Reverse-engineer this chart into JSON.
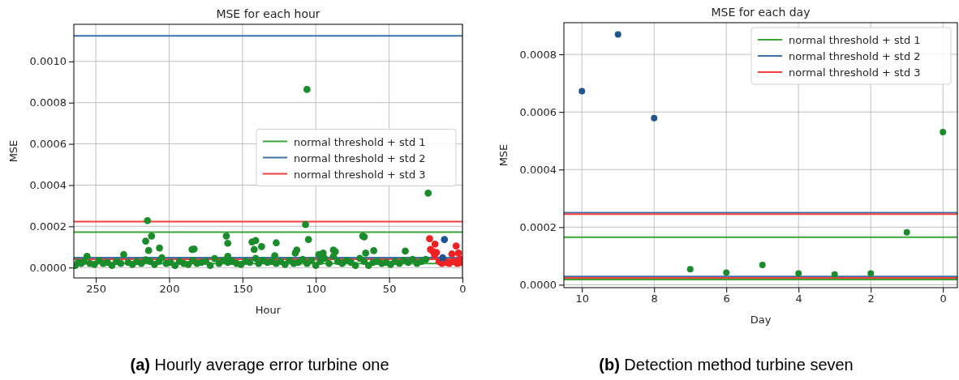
{
  "chart_data": [
    {
      "type": "scatter",
      "title": "MSE for each hour",
      "xlabel": "Hour",
      "ylabel": "MSE",
      "xlim": [
        265,
        0
      ],
      "xticks": [
        250,
        200,
        150,
        100,
        50,
        0
      ],
      "ylim": [
        -5e-05,
        0.00118
      ],
      "yticks": [
        {
          "value": 0,
          "label": "0.0000"
        },
        {
          "value": 0.0002,
          "label": "0.0002"
        },
        {
          "value": 0.0004,
          "label": "0.0004"
        },
        {
          "value": 0.0006,
          "label": "0.0006"
        },
        {
          "value": 0.0008,
          "label": "0.0008"
        },
        {
          "value": 0.001,
          "label": "0.0010"
        }
      ],
      "grid": true,
      "legend": "center right",
      "marker": "circle",
      "annotations": [
        "(a) Hourly average error turbine one"
      ],
      "series": [
        {
          "type": "line",
          "marker": "none",
          "name": "normal threshold + std 1",
          "color": "#3aa63a",
          "x": [
            265,
            0
          ],
          "values": [
            0.000172,
            0.000172
          ]
        },
        {
          "type": "line",
          "marker": "none",
          "color": "#3aa63a",
          "x": [
            265,
            0
          ],
          "values": [
            2e-05,
            2e-05
          ]
        },
        {
          "type": "line",
          "marker": "none",
          "name": "normal threshold + std 2",
          "color": "#3f70a8",
          "x": [
            265,
            0
          ],
          "values": [
            0.001124,
            0.001124
          ]
        },
        {
          "type": "line",
          "marker": "none",
          "color": "#3f70a8",
          "x": [
            265,
            0
          ],
          "values": [
            4.8e-05,
            4.8e-05
          ]
        },
        {
          "type": "line",
          "marker": "none",
          "name": "normal threshold + std 3",
          "color": "#f04040",
          "x": [
            265,
            0
          ],
          "values": [
            0.000223,
            0.000223
          ]
        },
        {
          "type": "line",
          "marker": "none",
          "color": "#f04040",
          "x": [
            265,
            0
          ],
          "values": [
            4e-05,
            4e-05
          ]
        },
        {
          "color": "#1a8c2c",
          "x": [
            264,
            262,
            260,
            258,
            256,
            254,
            251,
            248,
            245,
            242,
            239,
            236,
            233,
            231,
            228,
            225,
            222,
            219,
            216,
            213,
            210,
            207,
            205,
            202,
            199,
            196,
            193,
            190,
            187,
            184,
            181,
            178,
            175,
            172,
            169,
            166,
            163,
            160,
            157,
            154,
            151,
            148,
            145,
            141,
            139,
            136,
            133,
            130,
            127,
            124,
            121,
            118,
            115,
            112,
            109,
            106,
            103,
            100,
            97,
            94,
            91,
            88,
            85,
            82,
            79,
            76,
            73,
            70,
            67,
            64,
            61,
            58,
            55,
            52,
            49,
            46,
            43,
            40,
            37,
            34,
            31,
            28,
            25,
            106,
            23.4,
            214.8,
            107,
            216,
            212,
            214,
            206.6,
            184.4,
            183,
            161,
            160,
            160,
            143.5,
            141,
            142,
            137,
            127,
            128,
            113,
            114,
            105,
            68,
            67,
            60.5,
            66,
            39,
            86.7,
            88,
            95,
            98
          ],
          "values": [
            1e-05,
            2.5e-05,
            2e-05,
            3e-05,
            5.5e-05,
            2e-05,
            1.5e-05,
            3.5e-05,
            2e-05,
            2.5e-05,
            1e-05,
            3e-05,
            2e-05,
            6.3e-05,
            2.5e-05,
            1.5e-05,
            3e-05,
            2e-05,
            3.8e-05,
            3e-05,
            1.5e-05,
            3e-05,
            4.8e-05,
            2e-05,
            2.5e-05,
            1e-05,
            3e-05,
            2e-05,
            1.5e-05,
            3.5e-05,
            2e-05,
            2.5e-05,
            3e-05,
            1e-05,
            4.4e-05,
            2e-05,
            3.5e-05,
            2.5e-05,
            3e-05,
            2e-05,
            1.5e-05,
            3e-05,
            2.5e-05,
            4.5e-05,
            2e-05,
            3.5e-05,
            2.5e-05,
            3e-05,
            2e-05,
            3e-05,
            1.5e-05,
            3.5e-05,
            2e-05,
            2.5e-05,
            4e-05,
            2e-05,
            3.5e-05,
            1e-05,
            3e-05,
            4.5e-05,
            2e-05,
            5.5e-05,
            3e-05,
            2e-05,
            3.5e-05,
            2.5e-05,
            1e-05,
            4.5e-05,
            3e-05,
            1e-05,
            2.5e-05,
            3e-05,
            2e-05,
            2.5e-05,
            1.5e-05,
            3e-05,
            2e-05,
            3.5e-05,
            2.5e-05,
            4e-05,
            2e-05,
            3e-05,
            4e-05,
            0.000864,
            0.000361,
            0.000228,
            0.000209,
            0.000128,
            0.000153,
            8.3e-05,
            9.5e-05,
            8.8e-05,
            9e-05,
            0.000153,
            0.000118,
            5.5e-05,
            0.000124,
            0.000131,
            8.8e-05,
            0.000102,
            0.00012,
            5.8e-05,
            8.5e-05,
            7e-05,
            0.000136,
            0.000153,
            0.000149,
            8.2e-05,
            7e-05,
            8e-05,
            7.7e-05,
            8.5e-05,
            7e-05,
            6.3e-05
          ]
        },
        {
          "color": "#ee2222",
          "x": [
            22.4,
            18.7,
            21.8,
            17.7,
            20,
            19,
            16,
            14,
            11,
            9,
            7.2,
            6,
            4.3,
            2.7,
            1.6,
            3.5,
            1
          ],
          "values": [
            0.00014,
            0.000114,
            8.8e-05,
            7.3e-05,
            7.7e-05,
            6e-05,
            3e-05,
            2e-05,
            2.5e-05,
            2e-05,
            6.6e-05,
            3e-05,
            0.000105,
            7e-05,
            4.1e-05,
            2e-05,
            2.5e-05
          ]
        },
        {
          "color": "#1f5591",
          "x": [
            12.3,
            13.5
          ],
          "values": [
            0.000136,
            4.8e-05
          ]
        }
      ]
    },
    {
      "type": "scatter",
      "title": "MSE for each day",
      "xlabel": "Day",
      "ylabel": "MSE",
      "xlim": [
        10.5,
        -0.4
      ],
      "xticks": [
        10,
        8,
        6,
        4,
        2,
        0
      ],
      "ylim": [
        -1e-05,
        0.00091
      ],
      "yticks": [
        {
          "value": 0,
          "label": "0.0000"
        },
        {
          "value": 0.0002,
          "label": "0.0002"
        },
        {
          "value": 0.0004,
          "label": "0.0004"
        },
        {
          "value": 0.0006,
          "label": "0.0006"
        },
        {
          "value": 0.0008,
          "label": "0.0008"
        }
      ],
      "grid": true,
      "legend": "top right",
      "marker": "circle",
      "annotations": [
        "(b) Detection method turbine seven"
      ],
      "series": [
        {
          "type": "line",
          "marker": "none",
          "name": "normal threshold + std 1",
          "color": "#3aa63a",
          "x": [
            10.5,
            -0.4
          ],
          "values": [
            0.000165,
            0.000165
          ]
        },
        {
          "type": "line",
          "marker": "none",
          "color": "#3aa63a",
          "x": [
            10.5,
            -0.4
          ],
          "values": [
            1.8e-05,
            1.8e-05
          ]
        },
        {
          "type": "line",
          "marker": "none",
          "name": "normal threshold + std 2",
          "color": "#3f70a8",
          "x": [
            10.5,
            -0.4
          ],
          "values": [
            0.00025,
            0.00025
          ]
        },
        {
          "type": "line",
          "marker": "none",
          "color": "#3f70a8",
          "x": [
            10.5,
            -0.4
          ],
          "values": [
            2.9e-05,
            2.9e-05
          ]
        },
        {
          "type": "line",
          "marker": "none",
          "name": "normal threshold + std 3",
          "color": "#f04040",
          "x": [
            10.5,
            -0.4
          ],
          "values": [
            0.000245,
            0.000245
          ]
        },
        {
          "type": "line",
          "marker": "none",
          "color": "#f04040",
          "x": [
            10.5,
            -0.4
          ],
          "values": [
            2.4e-05,
            2.4e-05
          ]
        },
        {
          "color": "#1f5591",
          "x": [
            10,
            9,
            8
          ],
          "values": [
            0.000672,
            0.000869,
            0.000579
          ]
        },
        {
          "color": "#1a8c2c",
          "x": [
            7,
            6,
            5,
            4,
            3,
            2,
            1,
            0
          ],
          "values": [
            5.4e-05,
            4.2e-05,
            6.9e-05,
            3.9e-05,
            3.6e-05,
            3.9e-05,
            0.000182,
            0.00053
          ]
        }
      ]
    }
  ]
}
